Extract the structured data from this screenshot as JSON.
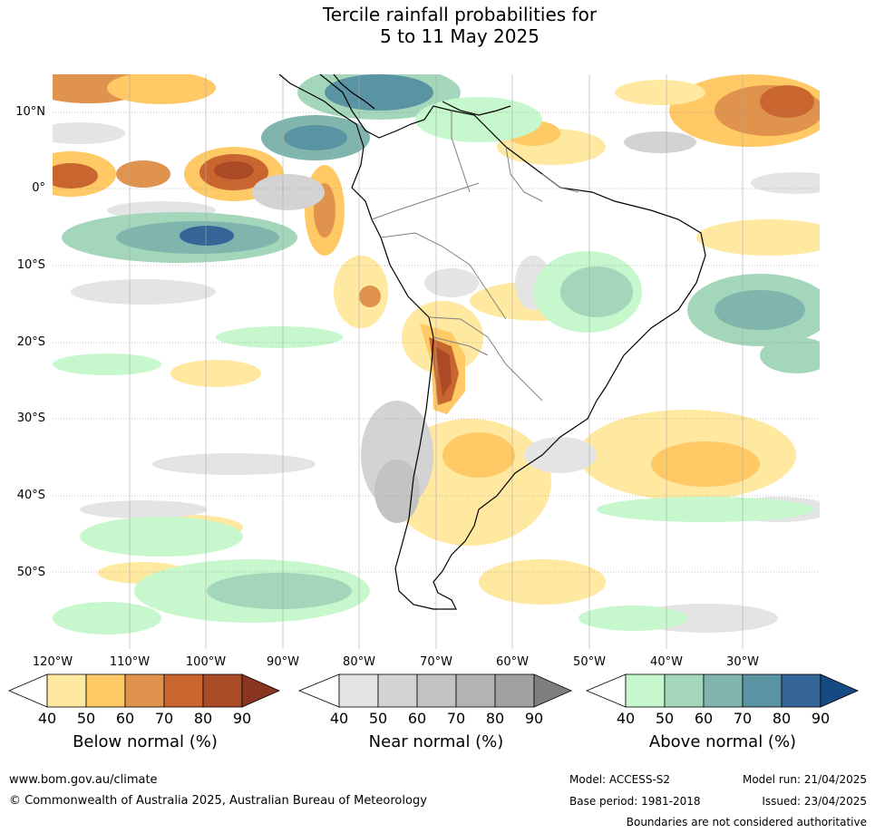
{
  "title_line1": "Tercile rainfall probabilities for",
  "title_line2": "5 to 11 May 2025",
  "map": {
    "lat_labels": [
      "10°N",
      "0°",
      "10°S",
      "20°S",
      "30°S",
      "40°S",
      "50°S"
    ],
    "lon_labels": [
      "120°W",
      "110°W",
      "100°W",
      "90°W",
      "80°W",
      "70°W",
      "60°W",
      "50°W",
      "40°W",
      "30°W"
    ],
    "lat_range": [
      -60,
      15
    ],
    "lon_range": [
      -120,
      -20
    ],
    "grid": true
  },
  "colorbars": [
    {
      "title": "Below normal (%)",
      "ticks": [
        "40",
        "50",
        "60",
        "70",
        "80",
        "90"
      ],
      "colors": [
        "#ffffff",
        "#ffe8a0",
        "#ffc965",
        "#e0934c",
        "#c9662f",
        "#ab4a26",
        "#8a3520"
      ]
    },
    {
      "title": "Near normal (%)",
      "ticks": [
        "40",
        "50",
        "60",
        "70",
        "80",
        "90"
      ],
      "colors": [
        "#ffffff",
        "#e4e4e4",
        "#d3d3d3",
        "#c3c3c3",
        "#b3b3b3",
        "#a1a1a1",
        "#7e7e7e"
      ]
    },
    {
      "title": "Above normal (%)",
      "ticks": [
        "40",
        "50",
        "60",
        "70",
        "80",
        "90"
      ],
      "colors": [
        "#ffffff",
        "#c7f8cd",
        "#a3d6ba",
        "#80b5ad",
        "#5a93a2",
        "#356597",
        "#164a82"
      ]
    }
  ],
  "footer": {
    "website": "www.bom.gov.au/climate",
    "copyright": "© Commonwealth of Australia 2025, Australian Bureau of Meteorology",
    "model": "Model: ACCESS-S2",
    "base_period": "Base period: 1981-2018",
    "model_run": "Model run: 21/04/2025",
    "issued": "Issued: 23/04/2025",
    "disclaimer": "Boundaries are not considered authoritative"
  }
}
